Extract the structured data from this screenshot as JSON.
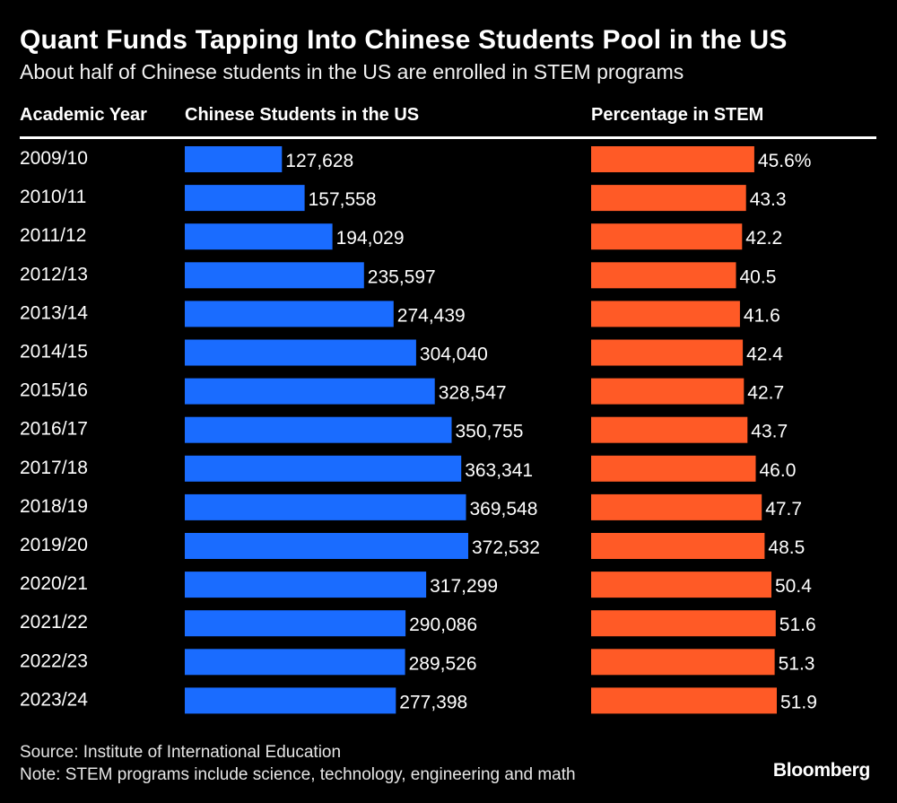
{
  "header": {
    "title": "Quant Funds Tapping Into Chinese Students Pool in the US",
    "subtitle": "About half of Chinese students in the US are enrolled in STEM programs"
  },
  "columns": {
    "year": "Academic Year",
    "students": "Chinese Students in the US",
    "stem": "Percentage in STEM"
  },
  "chart_data": {
    "type": "bar",
    "title": "Quant Funds Tapping Into Chinese Students Pool in the US",
    "subtitle": "About half of Chinese students in the US are enrolled in STEM programs",
    "orientation": "horizontal",
    "categories": [
      "2009/10",
      "2010/11",
      "2011/12",
      "2012/13",
      "2013/14",
      "2014/15",
      "2015/16",
      "2016/17",
      "2017/18",
      "2018/19",
      "2019/20",
      "2020/21",
      "2021/22",
      "2022/23",
      "2023/24"
    ],
    "series": [
      {
        "name": "Chinese Students in the US",
        "color": "#1a6cff",
        "values": [
          127628,
          157558,
          194029,
          235597,
          274439,
          304040,
          328547,
          350755,
          363341,
          369548,
          372532,
          317299,
          290086,
          289526,
          277398
        ],
        "labels": [
          "127,628",
          "157,558",
          "194,029",
          "235,597",
          "274,439",
          "304,040",
          "328,547",
          "350,755",
          "363,341",
          "369,548",
          "372,532",
          "317,299",
          "290,086",
          "289,526",
          "277,398"
        ],
        "xlim": [
          0,
          372532
        ]
      },
      {
        "name": "Percentage in STEM",
        "color": "#ff5a26",
        "values": [
          45.6,
          43.3,
          42.2,
          40.5,
          41.6,
          42.4,
          42.7,
          43.7,
          46.0,
          47.7,
          48.5,
          50.4,
          51.6,
          51.3,
          51.9
        ],
        "labels": [
          "45.6%",
          "43.3",
          "42.2",
          "40.5",
          "41.6",
          "42.4",
          "42.7",
          "43.7",
          "46.0",
          "47.7",
          "48.5",
          "50.4",
          "51.6",
          "51.3",
          "51.9"
        ],
        "xlim": [
          0,
          51.9
        ]
      }
    ]
  },
  "footer": {
    "source": "Source: Institute of International Education",
    "note": "Note: STEM programs include science, technology, engineering and math",
    "brand": "Bloomberg"
  }
}
